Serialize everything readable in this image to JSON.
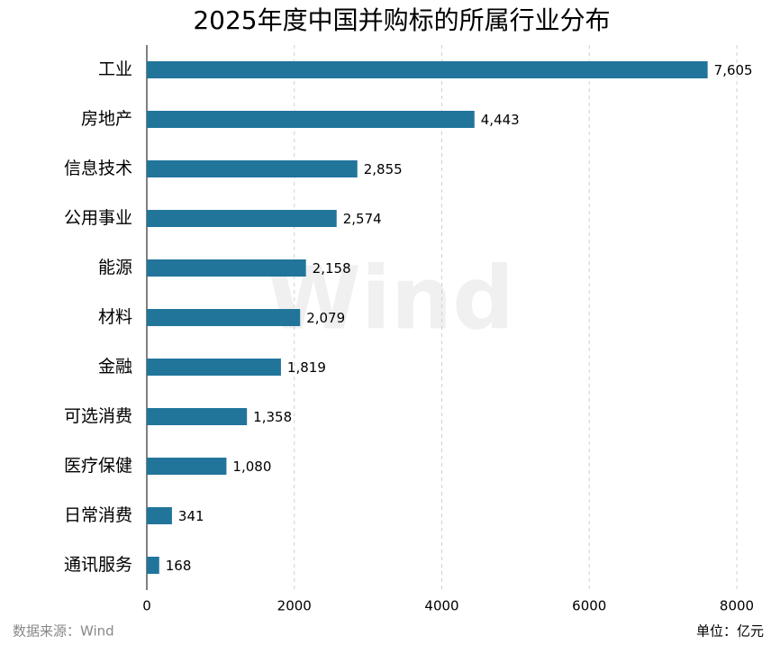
{
  "chart_data": {
    "type": "bar",
    "orientation": "horizontal",
    "title": "2025年度中国并购标的所属行业分布",
    "categories": [
      "工业",
      "房地产",
      "信息技术",
      "公用事业",
      "能源",
      "材料",
      "金融",
      "可选消费",
      "医疗保健",
      "日常消费",
      "通讯服务"
    ],
    "values": [
      7605,
      4443,
      2855,
      2574,
      2158,
      2079,
      1819,
      1358,
      1080,
      341,
      168
    ],
    "value_labels": [
      "7,605",
      "4,443",
      "2,855",
      "2,574",
      "2,158",
      "2,079",
      "1,819",
      "1,358",
      "1,080",
      "341",
      "168"
    ],
    "color": "#21759b",
    "xlim": [
      0,
      8000
    ],
    "xticks": [
      0,
      2000,
      4000,
      6000,
      8000
    ],
    "grid": true,
    "source": "数据来源：Wind",
    "unit": "单位：亿元",
    "watermark": "Wind"
  }
}
